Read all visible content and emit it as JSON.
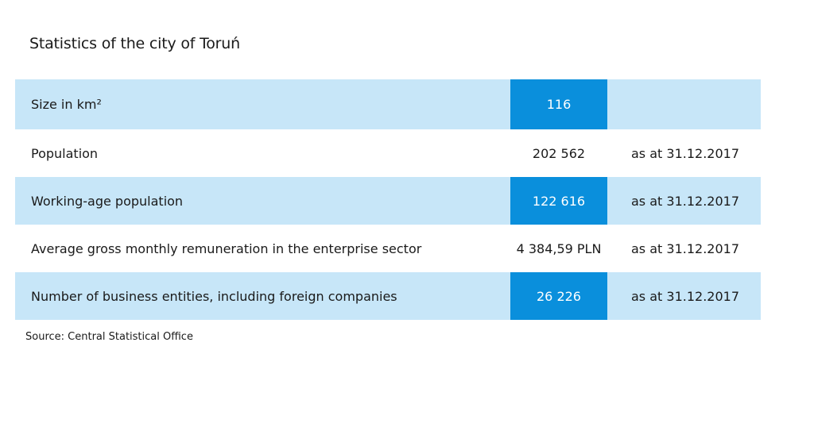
{
  "title": "Statistics of the city of Toruń",
  "rows": [
    {
      "label": "Size in km²",
      "value": "116",
      "date": ""
    },
    {
      "label": "Population",
      "value": "202 562",
      "date": "as at 31.12.2017"
    },
    {
      "label": "Working-age population",
      "value": "122 616",
      "date": "as at 31.12.2017"
    },
    {
      "label": "Average gross monthly remuneration in the enterprise sector",
      "value": "4 384,59 PLN",
      "date": "as at 31.12.2017"
    },
    {
      "label": "Number of business entities, including foreign companies",
      "value": "26 226",
      "date": "as at 31.12.2017"
    }
  ],
  "source": "Source: Central Statistical Office",
  "colors": {
    "row_highlight": "#c7e6f8",
    "value_highlight": "#0a8fdc"
  }
}
